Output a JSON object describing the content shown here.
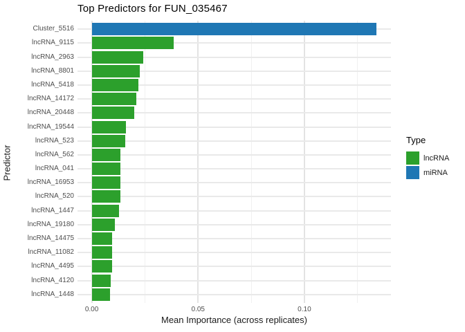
{
  "chart_data": {
    "type": "bar",
    "orientation": "horizontal",
    "title": "Top Predictors for FUN_035467",
    "xlabel": "Mean Importance (across replicates)",
    "ylabel": "Predictor",
    "categories": [
      "Cluster_5516",
      "lncRNA_9115",
      "lncRNA_2963",
      "lncRNA_8801",
      "lncRNA_5418",
      "lncRNA_14172",
      "lncRNA_20448",
      "lncRNA_19544",
      "lncRNA_523",
      "lncRNA_562",
      "lncRNA_041",
      "lncRNA_16953",
      "lncRNA_520",
      "lncRNA_1447",
      "lncRNA_19180",
      "lncRNA_14475",
      "lncRNA_11082",
      "lncRNA_4495",
      "lncRNA_4120",
      "lncRNA_1448"
    ],
    "values": [
      0.134,
      0.0385,
      0.0241,
      0.0225,
      0.022,
      0.021,
      0.0201,
      0.016,
      0.0157,
      0.0134,
      0.0134,
      0.0134,
      0.0134,
      0.0128,
      0.0109,
      0.0095,
      0.0095,
      0.0095,
      0.0089,
      0.0086
    ],
    "types": [
      "miRNA",
      "lncRNA",
      "lncRNA",
      "lncRNA",
      "lncRNA",
      "lncRNA",
      "lncRNA",
      "lncRNA",
      "lncRNA",
      "lncRNA",
      "lncRNA",
      "lncRNA",
      "lncRNA",
      "lncRNA",
      "lncRNA",
      "lncRNA",
      "lncRNA",
      "lncRNA",
      "lncRNA",
      "lncRNA"
    ],
    "xlim": [
      -0.0067,
      0.1407
    ],
    "xtick_values": [
      0.0,
      0.05,
      0.1
    ],
    "xtick_labels": [
      "0.00",
      "0.05",
      "0.10"
    ],
    "xtick_minor_values": [
      0.025,
      0.075,
      0.125
    ],
    "grid": "on",
    "legend": {
      "title": "Type",
      "position": "right",
      "items": [
        {
          "label": "lncRNA",
          "color": "#2ca02c"
        },
        {
          "label": "miRNA",
          "color": "#1f77b4"
        }
      ]
    }
  }
}
